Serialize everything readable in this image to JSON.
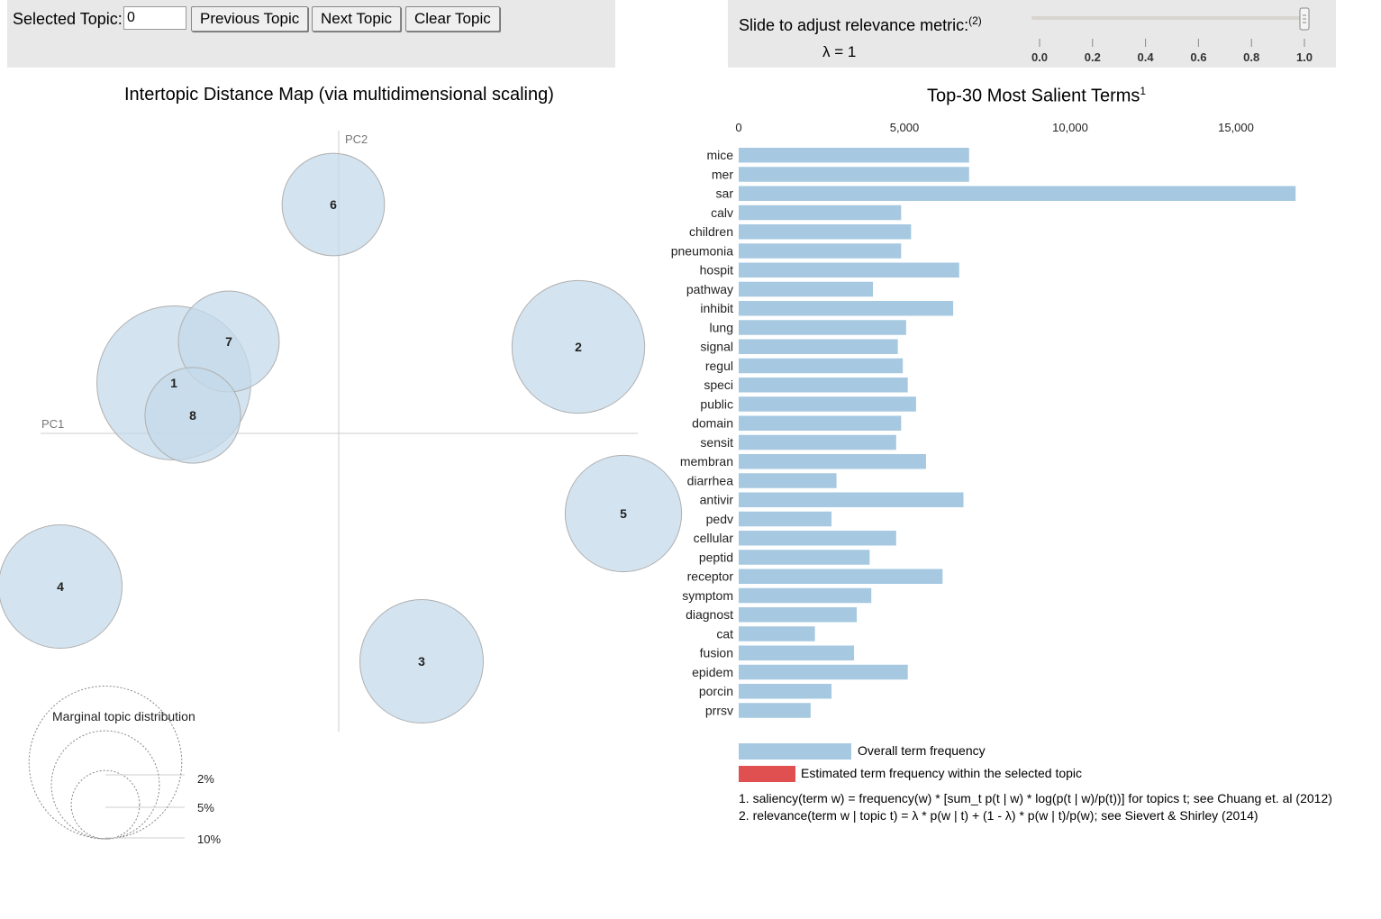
{
  "controls": {
    "selected_topic_label": "Selected Topic:",
    "selected_topic_value": "0",
    "prev_label": "Previous Topic",
    "next_label": "Next Topic",
    "clear_label": "Clear Topic",
    "slider_label": "Slide to adjust relevance metric:",
    "slider_note": "(2)",
    "lambda_text": "λ = 1",
    "lambda_value": 1,
    "slider_ticks": [
      "0.0",
      "0.2",
      "0.4",
      "0.6",
      "0.8",
      "1.0"
    ]
  },
  "colors": {
    "bar": "#a6c8e0",
    "selected": "#e05050",
    "bubble": "#c4d9ea",
    "axis": "#cccccc"
  },
  "chart_data": [
    {
      "type": "scatter",
      "title": "Intertopic Distance Map (via multidimensional scaling)",
      "xlabel": "PC1",
      "ylabel": "PC2",
      "topics": [
        {
          "id": "1",
          "x": -0.183,
          "y": 0.056,
          "size": 7.0
        },
        {
          "id": "2",
          "x": 0.266,
          "y": 0.096,
          "size": 5.2
        },
        {
          "id": "3",
          "x": 0.092,
          "y": -0.253,
          "size": 4.5
        },
        {
          "id": "4",
          "x": -0.309,
          "y": -0.17,
          "size": 4.5
        },
        {
          "id": "5",
          "x": 0.316,
          "y": -0.089,
          "size": 4.0
        },
        {
          "id": "6",
          "x": -0.006,
          "y": 0.254,
          "size": 3.1
        },
        {
          "id": "7",
          "x": -0.122,
          "y": 0.102,
          "size": 3.0
        },
        {
          "id": "8",
          "x": -0.162,
          "y": 0.02,
          "size": 2.7
        }
      ],
      "marginal_title": "Marginal topic distribution",
      "marginal_levels": [
        "2%",
        "5%",
        "10%"
      ]
    },
    {
      "type": "bar",
      "title": "Top-30 Most Salient Terms",
      "title_note": "1",
      "xticks": [
        "0",
        "5,000",
        "10,000",
        "15,000"
      ],
      "xtick_values": [
        0,
        5000,
        10000,
        15000
      ],
      "categories": [
        "mice",
        "mer",
        "sar",
        "calv",
        "children",
        "pneumonia",
        "hospit",
        "pathway",
        "inhibit",
        "lung",
        "signal",
        "regul",
        "speci",
        "public",
        "domain",
        "sensit",
        "membran",
        "diarrhea",
        "antivir",
        "pedv",
        "cellular",
        "peptid",
        "receptor",
        "symptom",
        "diagnost",
        "cat",
        "fusion",
        "epidem",
        "porcin",
        "prrsv"
      ],
      "values": [
        6950,
        6950,
        16800,
        4900,
        5200,
        4900,
        6650,
        4050,
        6470,
        5050,
        4800,
        4950,
        5100,
        5350,
        4900,
        4750,
        5650,
        2950,
        6780,
        2800,
        4750,
        3950,
        6150,
        4000,
        3560,
        2300,
        3480,
        5100,
        2800,
        2170
      ],
      "legend_overall": "Overall term frequency",
      "legend_selected": "Estimated term frequency within the selected topic"
    }
  ],
  "footnotes": [
    "1. saliency(term w) = frequency(w) * [sum_t p(t | w) * log(p(t | w)/p(t))] for topics t; see Chuang et. al (2012)",
    "2. relevance(term w | topic t) = λ * p(w | t) + (1 - λ) * p(w | t)/p(w); see Sievert & Shirley (2014)"
  ]
}
